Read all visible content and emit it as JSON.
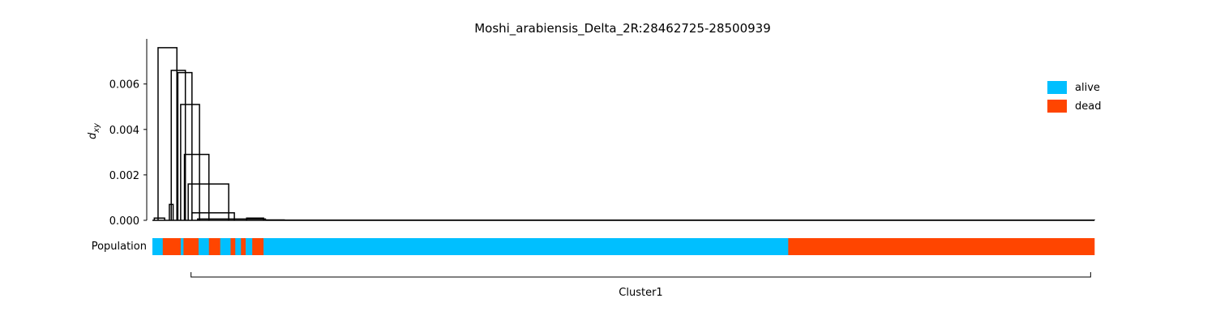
{
  "chart_data": {
    "type": "dendrogram",
    "title": "Moshi_arabiensis_Delta_2R:28462725-28500939",
    "ylabel": "d",
    "ylabel_sub": "xy",
    "ylim": [
      0,
      0.008
    ],
    "yticks": [
      "0.000",
      "0.002",
      "0.004",
      "0.006"
    ],
    "ytick_values": [
      0,
      0.002,
      0.004,
      0.006
    ],
    "grid": false,
    "legend_position": "top-right",
    "legend": [
      {
        "label": "alive",
        "color": "#00BFFF"
      },
      {
        "label": "dead",
        "color": "#FF4500"
      }
    ],
    "population_label": "Population",
    "population_segments": [
      {
        "start": 0.0,
        "end": 0.011,
        "group": "alive"
      },
      {
        "start": 0.011,
        "end": 0.03,
        "group": "dead"
      },
      {
        "start": 0.03,
        "end": 0.033,
        "group": "alive"
      },
      {
        "start": 0.033,
        "end": 0.049,
        "group": "dead"
      },
      {
        "start": 0.049,
        "end": 0.06,
        "group": "alive"
      },
      {
        "start": 0.06,
        "end": 0.072,
        "group": "dead"
      },
      {
        "start": 0.072,
        "end": 0.083,
        "group": "alive"
      },
      {
        "start": 0.083,
        "end": 0.088,
        "group": "dead"
      },
      {
        "start": 0.088,
        "end": 0.094,
        "group": "alive"
      },
      {
        "start": 0.094,
        "end": 0.099,
        "group": "dead"
      },
      {
        "start": 0.099,
        "end": 0.106,
        "group": "alive"
      },
      {
        "start": 0.106,
        "end": 0.118,
        "group": "dead"
      },
      {
        "start": 0.118,
        "end": 0.675,
        "group": "alive"
      },
      {
        "start": 0.675,
        "end": 1.0,
        "group": "dead"
      }
    ],
    "cluster": {
      "label": "Cluster1",
      "start": 0.041,
      "end": 0.996
    },
    "links": [
      {
        "left": 0.002,
        "right": 0.013,
        "height": 0.0001
      },
      {
        "left": 0.006,
        "right": 0.026,
        "height": 0.0076
      },
      {
        "left": 0.018,
        "right": 0.022,
        "height": 0.0007
      },
      {
        "left": 0.02,
        "right": 0.035,
        "height": 0.0066
      },
      {
        "left": 0.027,
        "right": 0.042,
        "height": 0.0065
      },
      {
        "left": 0.03,
        "right": 0.05,
        "height": 0.0051
      },
      {
        "left": 0.034,
        "right": 0.06,
        "height": 0.0029
      },
      {
        "left": 0.038,
        "right": 0.081,
        "height": 0.0016
      },
      {
        "left": 0.042,
        "right": 0.087,
        "height": 0.00033
      },
      {
        "left": 0.048,
        "right": 0.12,
        "height": 6e-05
      },
      {
        "left": 0.1,
        "right": 0.118,
        "height": 0.0001
      },
      {
        "left": 0.12,
        "right": 0.14,
        "height": 2e-05
      },
      {
        "left": 0.14,
        "right": 1.0,
        "height": 1e-05
      }
    ]
  }
}
